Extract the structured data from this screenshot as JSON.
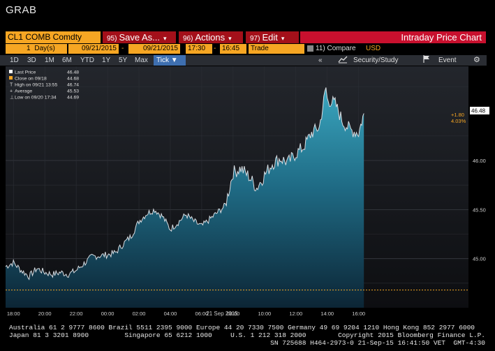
{
  "window": {
    "title": "GRAB"
  },
  "toolbar": {
    "ticker": "CL1 COMB Comdty",
    "save": {
      "num": "95)",
      "label": "Save As...",
      "caret": "▾"
    },
    "actions": {
      "num": "96)",
      "label": "Actions",
      "caret": "▾"
    },
    "edit": {
      "num": "97)",
      "label": "Edit",
      "caret": "▾"
    },
    "chart_title": "Intraday Price Chart"
  },
  "settings": {
    "period_count": "1",
    "period_unit": "Day(s)",
    "start_date": "09/21/2015",
    "date_sep": "-",
    "end_date": "09/21/2015",
    "start_time": "17:30",
    "time_sep": "-",
    "end_time": "16:45",
    "field": "Trade",
    "compare": "11) Compare",
    "currency": "USD"
  },
  "periods": [
    "1D",
    "3D",
    "1M",
    "6M",
    "YTD",
    "1Y",
    "5Y",
    "Max"
  ],
  "tick_label": "Tick ▼",
  "right_bar": {
    "chevron": "«",
    "security_study": "Security/Study",
    "event": "Event",
    "gear": "⚙"
  },
  "legend": [
    {
      "label": "Last Price",
      "value": "46.48"
    },
    {
      "label": "Close on 09/18",
      "value": "44.68"
    },
    {
      "label": "High on 09/21 13:55",
      "value": "46.74"
    },
    {
      "label": "Average",
      "value": "45.53"
    },
    {
      "label": "Low on 09/20 17:34",
      "value": "44.69"
    }
  ],
  "last_label": {
    "price": "46.48",
    "change": "+1.80",
    "pct": "4.03%"
  },
  "colors": {
    "accent_orange": "#f6a623",
    "red_button": "#a4101a",
    "title_red": "#c8102e",
    "area_fill": "#1f6b85"
  },
  "chart_data": {
    "type": "area",
    "xlabel": "21 Sep 2015",
    "x_ticks": [
      "18:00",
      "20:00",
      "22:00",
      "00:00",
      "02:00",
      "04:00",
      "06:00",
      "08:00",
      "10:00",
      "12:00",
      "14:00",
      "16:00"
    ],
    "y_ticks": [
      "45.00",
      "45.50",
      "46.00"
    ],
    "ylim": [
      44.5,
      46.96
    ],
    "grid": true,
    "reference_line": 44.68,
    "series": [
      {
        "name": "Last Price",
        "x": [
          "17:30",
          "18:00",
          "18:30",
          "19:00",
          "19:30",
          "20:00",
          "20:30",
          "21:00",
          "21:30",
          "22:00",
          "22:30",
          "23:00",
          "23:30",
          "00:00",
          "00:30",
          "01:00",
          "01:30",
          "02:00",
          "02:30",
          "03:00",
          "03:30",
          "04:00",
          "04:30",
          "05:00",
          "05:30",
          "06:00",
          "06:30",
          "07:00",
          "07:30",
          "08:00",
          "08:30",
          "09:00",
          "09:30",
          "10:00",
          "10:30",
          "11:00",
          "11:30",
          "12:00",
          "12:30",
          "13:00",
          "13:30",
          "13:55",
          "14:00",
          "14:30",
          "15:00",
          "15:30",
          "16:00",
          "16:20"
        ],
        "values": [
          44.92,
          44.96,
          44.88,
          44.82,
          44.9,
          44.86,
          44.84,
          44.86,
          44.84,
          44.88,
          44.95,
          45.02,
          45.03,
          45.04,
          45.06,
          45.15,
          45.23,
          45.38,
          45.46,
          45.5,
          45.43,
          45.3,
          45.37,
          45.45,
          45.38,
          45.33,
          45.4,
          45.47,
          45.54,
          45.88,
          45.92,
          45.84,
          45.72,
          45.85,
          45.97,
          46.02,
          45.98,
          46.07,
          46.14,
          46.28,
          46.34,
          46.74,
          46.62,
          46.58,
          46.39,
          46.31,
          46.28,
          46.48
        ]
      }
    ]
  },
  "footer": {
    "line1": "Australia 61 2 9777 8600 Brazil 5511 2395 9000 Europe 44 20 7330 7500 Germany 49 69 9204 1210 Hong Kong 852 2977 6000",
    "line2_left": "Japan 81 3 3201 8900         Singapore 65 6212 1000",
    "line2_right": "U.S. 1 212 318 2000        Copyright 2015 Bloomberg Finance L.P.",
    "line3": "SN 725688 H464-2973-0 21-Sep-15 16:41:50 VET  GMT-4:30"
  }
}
